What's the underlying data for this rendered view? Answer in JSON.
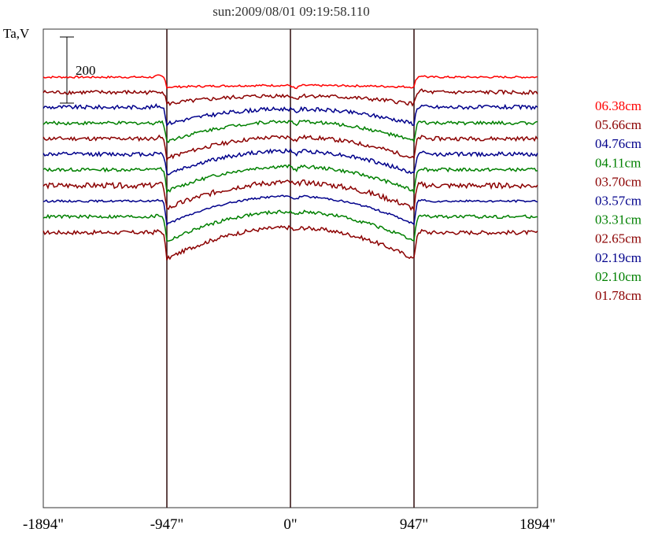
{
  "chart_data": {
    "type": "line",
    "title": "sun:2009/08/01 09:19:58.110",
    "ylabel": "Ta,V",
    "scale_bar_label": "200",
    "x_ticks": [
      {
        "value": -1894,
        "label": "-1894\""
      },
      {
        "value": -947,
        "label": "-947\""
      },
      {
        "value": 0,
        "label": "0\""
      },
      {
        "value": 947,
        "label": "947\""
      },
      {
        "value": 1894,
        "label": "1894\""
      }
    ],
    "x_range": [
      -1894,
      1894
    ],
    "disk_markers": [
      -947,
      0,
      947
    ],
    "grid": false,
    "legend_position": "right",
    "series": [
      {
        "name": "06.38cm",
        "color": "#ff0000",
        "quiet_level": 0,
        "limb_dip": 30,
        "disk_rise": 5,
        "noise": 1.5
      },
      {
        "name": "05.66cm",
        "color": "#8b0000",
        "quiet_level": -46,
        "limb_dip": 35,
        "disk_rise": 25,
        "noise": 3
      },
      {
        "name": "04.76cm",
        "color": "#00008b",
        "quiet_level": -91,
        "limb_dip": 50,
        "disk_rise": 45,
        "noise": 3
      },
      {
        "name": "04.11cm",
        "color": "#008000",
        "quiet_level": -139,
        "limb_dip": 55,
        "disk_rise": 60,
        "noise": 2.5
      },
      {
        "name": "03.70cm",
        "color": "#8b0000",
        "quiet_level": -186,
        "limb_dip": 60,
        "disk_rise": 65,
        "noise": 3
      },
      {
        "name": "03.57cm",
        "color": "#00008b",
        "quiet_level": -233,
        "limb_dip": 60,
        "disk_rise": 70,
        "noise": 3
      },
      {
        "name": "03.31cm",
        "color": "#008000",
        "quiet_level": -280,
        "limb_dip": 65,
        "disk_rise": 75,
        "noise": 2.5
      },
      {
        "name": "02.65cm",
        "color": "#8b0000",
        "quiet_level": -328,
        "limb_dip": 70,
        "disk_rise": 80,
        "noise": 4
      },
      {
        "name": "02.19cm",
        "color": "#00008b",
        "quiet_level": -375,
        "limb_dip": 70,
        "disk_rise": 85,
        "noise": 1.5
      },
      {
        "name": "02.10cm",
        "color": "#008000",
        "quiet_level": -422,
        "limb_dip": 75,
        "disk_rise": 90,
        "noise": 2.5
      },
      {
        "name": "01.78cm",
        "color": "#8b0000",
        "quiet_level": -470,
        "limb_dip": 80,
        "disk_rise": 95,
        "noise": 3
      }
    ]
  }
}
